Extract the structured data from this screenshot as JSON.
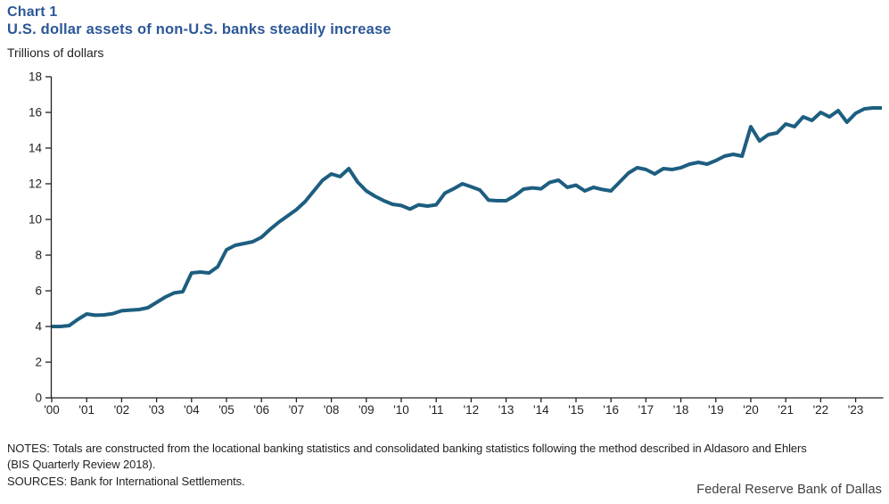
{
  "header": {
    "chart_label": "Chart 1",
    "title": "U.S. dollar assets of non-U.S. banks steadily increase",
    "units_label": "Trillions of dollars"
  },
  "chart_data": {
    "type": "line",
    "title": "U.S. dollar assets of non-U.S. banks steadily increase",
    "ylabel": "Trillions of dollars",
    "xlabel": "",
    "frequency": "quarterly",
    "x_start_year": 2000,
    "x_end_year": 2023,
    "ylim": [
      0,
      18
    ],
    "grid": false,
    "legend_position": "none",
    "line_color": "#1d5e80",
    "axis_color": "#231f20",
    "y_ticks": [
      0,
      2,
      4,
      6,
      8,
      10,
      12,
      14,
      16,
      18
    ],
    "x_tick_labels": [
      "'00",
      "'01",
      "'02",
      "'03",
      "'04",
      "'05",
      "'06",
      "'07",
      "'08",
      "'09",
      "'10",
      "'11",
      "'12",
      "'13",
      "'14",
      "'15",
      "'16",
      "'17",
      "'18",
      "'19",
      "'20",
      "'21",
      "'22",
      "'23"
    ],
    "series": [
      {
        "name": "U.S. dollar assets of non-U.S. banks (trillions of dollars)",
        "values": [
          4.0,
          4.0,
          4.05,
          4.4,
          4.7,
          4.63,
          4.65,
          4.72,
          4.88,
          4.92,
          4.95,
          5.05,
          5.35,
          5.65,
          5.88,
          5.95,
          7.0,
          7.05,
          7.0,
          7.35,
          8.3,
          8.55,
          8.65,
          8.75,
          9.0,
          9.45,
          9.85,
          10.2,
          10.55,
          11.0,
          11.6,
          12.2,
          12.55,
          12.4,
          12.85,
          12.1,
          11.6,
          11.3,
          11.05,
          10.85,
          10.78,
          10.58,
          10.82,
          10.75,
          10.82,
          11.48,
          11.72,
          12.0,
          11.83,
          11.65,
          11.08,
          11.05,
          11.05,
          11.33,
          11.7,
          11.77,
          11.72,
          12.08,
          12.2,
          11.8,
          11.92,
          11.6,
          11.8,
          11.68,
          11.6,
          12.1,
          12.6,
          12.9,
          12.8,
          12.55,
          12.85,
          12.8,
          12.9,
          13.1,
          13.2,
          13.1,
          13.3,
          13.55,
          13.65,
          13.55,
          15.2,
          14.4,
          14.75,
          14.85,
          15.35,
          15.2,
          15.75,
          15.55,
          16.0,
          15.75,
          16.1,
          15.45,
          15.95,
          16.2,
          16.25,
          16.25
        ]
      }
    ]
  },
  "notes": {
    "notes_text": "NOTES: Totals are constructed from the locational banking statistics and consolidated banking statistics following the method described in Aldasoro and Ehlers (BIS Quarterly Review 2018).",
    "sources_text": "SOURCES: Bank for International Settlements."
  },
  "footer": {
    "attribution": "Federal Reserve Bank of Dallas"
  }
}
